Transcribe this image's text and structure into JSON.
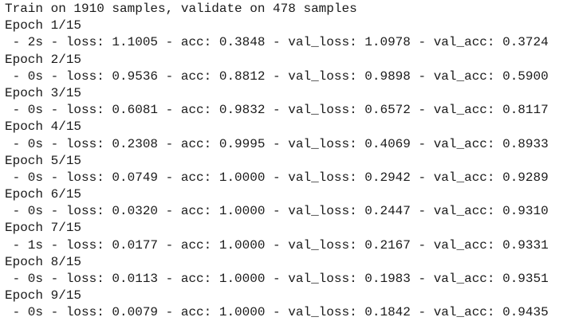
{
  "header": "Train on 1910 samples, validate on 478 samples",
  "epochs": [
    {
      "label": "Epoch 1/15",
      "log": " - 2s - loss: 1.1005 - acc: 0.3848 - val_loss: 1.0978 - val_acc: 0.3724"
    },
    {
      "label": "Epoch 2/15",
      "log": " - 0s - loss: 0.9536 - acc: 0.8812 - val_loss: 0.9898 - val_acc: 0.5900"
    },
    {
      "label": "Epoch 3/15",
      "log": " - 0s - loss: 0.6081 - acc: 0.9832 - val_loss: 0.6572 - val_acc: 0.8117"
    },
    {
      "label": "Epoch 4/15",
      "log": " - 0s - loss: 0.2308 - acc: 0.9995 - val_loss: 0.4069 - val_acc: 0.8933"
    },
    {
      "label": "Epoch 5/15",
      "log": " - 0s - loss: 0.0749 - acc: 1.0000 - val_loss: 0.2942 - val_acc: 0.9289"
    },
    {
      "label": "Epoch 6/15",
      "log": " - 0s - loss: 0.0320 - acc: 1.0000 - val_loss: 0.2447 - val_acc: 0.9310"
    },
    {
      "label": "Epoch 7/15",
      "log": " - 1s - loss: 0.0177 - acc: 1.0000 - val_loss: 0.2167 - val_acc: 0.9331"
    },
    {
      "label": "Epoch 8/15",
      "log": " - 0s - loss: 0.0113 - acc: 1.0000 - val_loss: 0.1983 - val_acc: 0.9351"
    },
    {
      "label": "Epoch 9/15",
      "log": " - 0s - loss: 0.0079 - acc: 1.0000 - val_loss: 0.1842 - val_acc: 0.9435"
    }
  ]
}
